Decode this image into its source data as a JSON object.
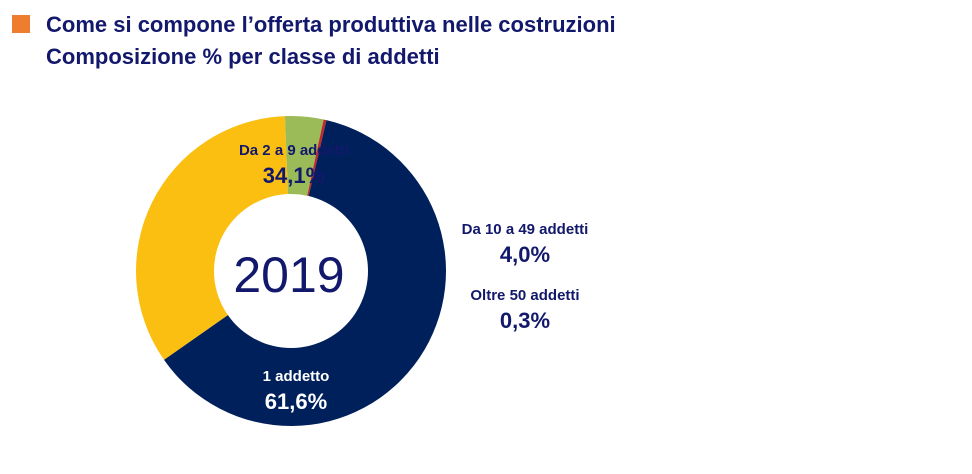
{
  "header": {
    "bullet_color": "#ee7d2f",
    "title": "Come si compone l’offerta produttiva nelle costruzioni",
    "subtitle": "Composizione % per classe di addetti"
  },
  "chart_data": {
    "type": "pie",
    "variant": "donut",
    "center_label": "2019",
    "categories": [
      "Da 2 a 9 addetti",
      "Da 10 a 49 addetti",
      "Oltre 50 addetti",
      "1 addetto"
    ],
    "values": [
      34.1,
      4.0,
      0.3,
      61.6
    ],
    "value_labels": [
      "34,1%",
      "4,0%",
      "0,3%",
      "61,6%"
    ],
    "colors": [
      "#fbbf12",
      "#9bbb59",
      "#c0282d",
      "#00205b"
    ],
    "label_colors": [
      "#12186b",
      "#12186b",
      "#12186b",
      "#ffffff"
    ]
  }
}
